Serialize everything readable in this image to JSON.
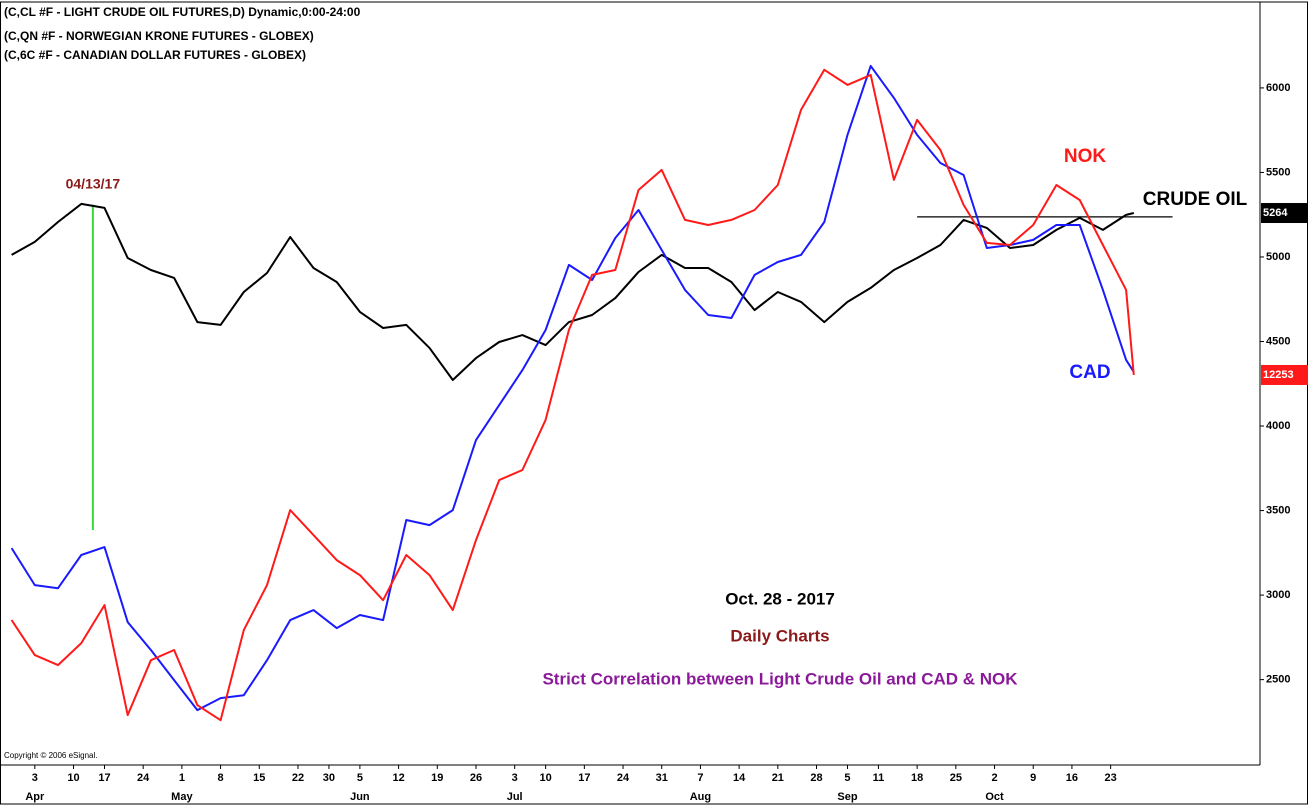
{
  "chart_data": {
    "type": "line",
    "title_lines": [
      "(C,CL #F - LIGHT CRUDE OIL FUTURES,D) Dynamic,0:00-24:00",
      "(C,QN #F - NORWEGIAN KRONE FUTURES - GLOBEX)",
      "(C,6C #F - CANADIAN DOLLAR FUTURES - GLOBEX)"
    ],
    "notes": [
      {
        "text": "Oct. 28 - 2017",
        "color": "#000000"
      },
      {
        "text": "Daily Charts",
        "color": "#8b1a1a"
      },
      {
        "text": "Strict Correlation between Light Crude Oil and CAD & NOK",
        "color": "#8b1a9b"
      }
    ],
    "copyright": "Copyright © 2006 eSignal.",
    "x": [
      -3,
      0,
      3,
      6,
      9,
      12,
      15,
      18,
      21,
      24,
      27,
      30,
      33,
      36,
      39,
      42,
      45,
      48,
      51,
      54,
      57,
      60,
      63,
      66,
      69,
      72,
      75,
      78,
      81,
      84,
      87,
      90,
      93,
      96,
      99,
      102,
      105,
      108,
      111,
      114,
      117,
      120,
      123,
      126,
      129,
      132,
      135,
      138,
      141,
      142
    ],
    "series": [
      {
        "name": "LIGHT CRUDE OIL FUTURES",
        "label": "CRUDE OIL",
        "last_label": "5264",
        "color": "#000000",
        "values": [
          5012,
          5089,
          5207,
          5314,
          5290,
          4994,
          4923,
          4876,
          4615,
          4598,
          4793,
          4905,
          5118,
          4935,
          4852,
          4675,
          4580,
          4598,
          4462,
          4272,
          4402,
          4497,
          4538,
          4479,
          4615,
          4657,
          4757,
          4911,
          5012,
          4935,
          4935,
          4852,
          4686,
          4793,
          4734,
          4615,
          4734,
          4817,
          4923,
          4994,
          5071,
          5219,
          5172,
          5053,
          5071,
          5160,
          5231,
          5160,
          5249,
          5260
        ]
      },
      {
        "name": "CANADIAN DOLLAR FUTURES",
        "label": "CAD",
        "color": "#1a1aff",
        "values": [
          3278,
          3059,
          3041,
          3237,
          3284,
          2840,
          2675,
          2497,
          2320,
          2391,
          2408,
          2615,
          2852,
          2911,
          2805,
          2882,
          2852,
          3444,
          3414,
          3503,
          3917,
          4124,
          4331,
          4568,
          4953,
          4864,
          5112,
          5278,
          5041,
          4805,
          4657,
          4639,
          4894,
          4970,
          5012,
          5207,
          5722,
          6130,
          5941,
          5722,
          5556,
          5485,
          5053,
          5071,
          5101,
          5189,
          5189,
          4805,
          4391,
          4320
        ]
      },
      {
        "name": "NORWEGIAN KRONE FUTURES",
        "label": "NOK",
        "last_label": "12253",
        "color": "#ff1a1a",
        "values": [
          2852,
          2645,
          2586,
          2716,
          2941,
          2290,
          2615,
          2675,
          2349,
          2260,
          2793,
          3059,
          3503,
          3355,
          3207,
          3118,
          2970,
          3237,
          3118,
          2911,
          3325,
          3680,
          3740,
          4036,
          4568,
          4894,
          4923,
          5396,
          5515,
          5219,
          5189,
          5219,
          5278,
          5426,
          5870,
          6107,
          6018,
          6077,
          5456,
          5811,
          5633,
          5308,
          5083,
          5071,
          5189,
          5426,
          5337,
          5071,
          4805,
          4302
        ]
      }
    ],
    "marker_line": {
      "text": "04/13/17",
      "x": 7.5,
      "y": [
        3385,
        5310
      ],
      "color": "#33dd33",
      "text_color": "#8b1a1a"
    },
    "reference_line": {
      "x": [
        114,
        147
      ],
      "y": 5237
    },
    "xlim": [
      -4.5,
      158.3
    ],
    "ylim": [
      1995,
      6520
    ],
    "yticks": [
      2500,
      3000,
      3500,
      4000,
      4500,
      5000,
      5500,
      6000
    ],
    "xticks": [
      {
        "value": 0,
        "label": "3"
      },
      {
        "value": 5,
        "label": "10"
      },
      {
        "value": 9,
        "label": "17"
      },
      {
        "value": 14,
        "label": "24"
      },
      {
        "value": 19,
        "label": "1"
      },
      {
        "value": 24,
        "label": "8"
      },
      {
        "value": 29,
        "label": "15"
      },
      {
        "value": 34,
        "label": "22"
      },
      {
        "value": 38,
        "label": "30"
      },
      {
        "value": 42,
        "label": "5"
      },
      {
        "value": 47,
        "label": "12"
      },
      {
        "value": 52,
        "label": "19"
      },
      {
        "value": 57,
        "label": "26"
      },
      {
        "value": 62,
        "label": "3"
      },
      {
        "value": 66,
        "label": "10"
      },
      {
        "value": 71,
        "label": "17"
      },
      {
        "value": 76,
        "label": "24"
      },
      {
        "value": 81,
        "label": "31"
      },
      {
        "value": 86,
        "label": "7"
      },
      {
        "value": 91,
        "label": "14"
      },
      {
        "value": 96,
        "label": "21"
      },
      {
        "value": 101,
        "label": "28"
      },
      {
        "value": 105,
        "label": "5"
      },
      {
        "value": 109,
        "label": "11"
      },
      {
        "value": 114,
        "label": "18"
      },
      {
        "value": 119,
        "label": "25"
      },
      {
        "value": 124,
        "label": "2"
      },
      {
        "value": 129,
        "label": "9"
      },
      {
        "value": 134,
        "label": "16"
      },
      {
        "value": 139,
        "label": "23"
      }
    ],
    "months": [
      {
        "value": 0,
        "label": "Apr"
      },
      {
        "value": 19,
        "label": "May"
      },
      {
        "value": 42,
        "label": "Jun"
      },
      {
        "value": 62,
        "label": "Jul"
      },
      {
        "value": 86,
        "label": "Aug"
      },
      {
        "value": 105,
        "label": "Sep"
      },
      {
        "value": 124,
        "label": "Oct"
      }
    ]
  }
}
